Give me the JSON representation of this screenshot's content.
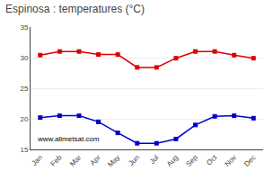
{
  "chart_data": {
    "type": "line",
    "title": "Espinosa : temperatures (°C)",
    "categories": [
      "Jan",
      "Feb",
      "Mar",
      "Apr",
      "May",
      "Jun",
      "Jul",
      "Aug",
      "Sep",
      "Oct",
      "Nov",
      "Dec"
    ],
    "series": [
      {
        "color": "#dd0000",
        "values": [
          30.4,
          31.0,
          31.0,
          30.5,
          30.5,
          28.4,
          28.4,
          29.9,
          31.0,
          31.0,
          30.4,
          29.9
        ]
      },
      {
        "color": "#0000cc",
        "values": [
          20.2,
          20.5,
          20.5,
          19.5,
          17.7,
          16.0,
          16.0,
          16.7,
          19.0,
          20.4,
          20.5,
          20.1
        ]
      }
    ],
    "marker": "square",
    "line_style": "solid",
    "ylim": [
      15,
      35
    ],
    "yticks": [
      15,
      20,
      25,
      30,
      35
    ],
    "grid": true,
    "annotations": [
      "www.allmetsat.com"
    ]
  }
}
